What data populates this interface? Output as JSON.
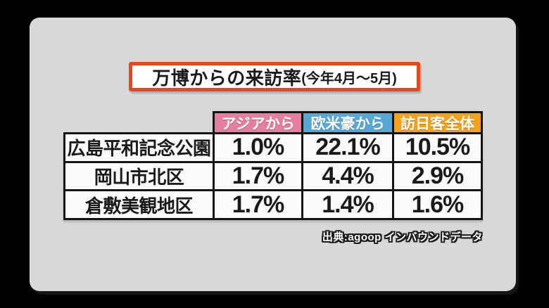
{
  "colors": {
    "canvas_bg": "#000000",
    "panel_bg": "#d8d8d8",
    "title_border": "#e7481b",
    "header_asia": "#e57e9f",
    "header_west": "#57a7d7",
    "header_all": "#f2a21d",
    "grid_line": "#141414",
    "cell_bg": "#fbfbfb"
  },
  "title": {
    "main": "万博からの来訪率",
    "sub": "(今年4月〜5月)"
  },
  "table": {
    "column_headers": [
      {
        "label": "アジアから",
        "color": "#e57e9f"
      },
      {
        "label": "欧米豪から",
        "color": "#57a7d7"
      },
      {
        "label": "訪日客全体",
        "color": "#f2a21d"
      }
    ],
    "rows": [
      {
        "label": "広島平和記念公園",
        "values": [
          "1.0%",
          "22.1%",
          "10.5%"
        ]
      },
      {
        "label": "岡山市北区",
        "values": [
          "1.7%",
          "4.4%",
          "2.9%"
        ]
      },
      {
        "label": "倉敷美観地区",
        "values": [
          "1.7%",
          "1.4%",
          "1.6%"
        ]
      }
    ]
  },
  "source": {
    "label": "出典:agoop インバウンドデータ"
  },
  "chart_data": {
    "type": "table",
    "title": "万博からの来訪率(今年4月〜5月)",
    "columns": [
      "アジアから",
      "欧米豪から",
      "訪日客全体"
    ],
    "row_labels": [
      "広島平和記念公園",
      "岡山市北区",
      "倉敷美観地区"
    ],
    "values_percent": [
      [
        1.0,
        22.1,
        10.5
      ],
      [
        1.7,
        4.4,
        2.9
      ],
      [
        1.7,
        1.4,
        1.6
      ]
    ],
    "unit": "%",
    "source": "出典:agoop インバウンドデータ",
    "column_colors": [
      "#e57e9f",
      "#57a7d7",
      "#f2a21d"
    ]
  }
}
